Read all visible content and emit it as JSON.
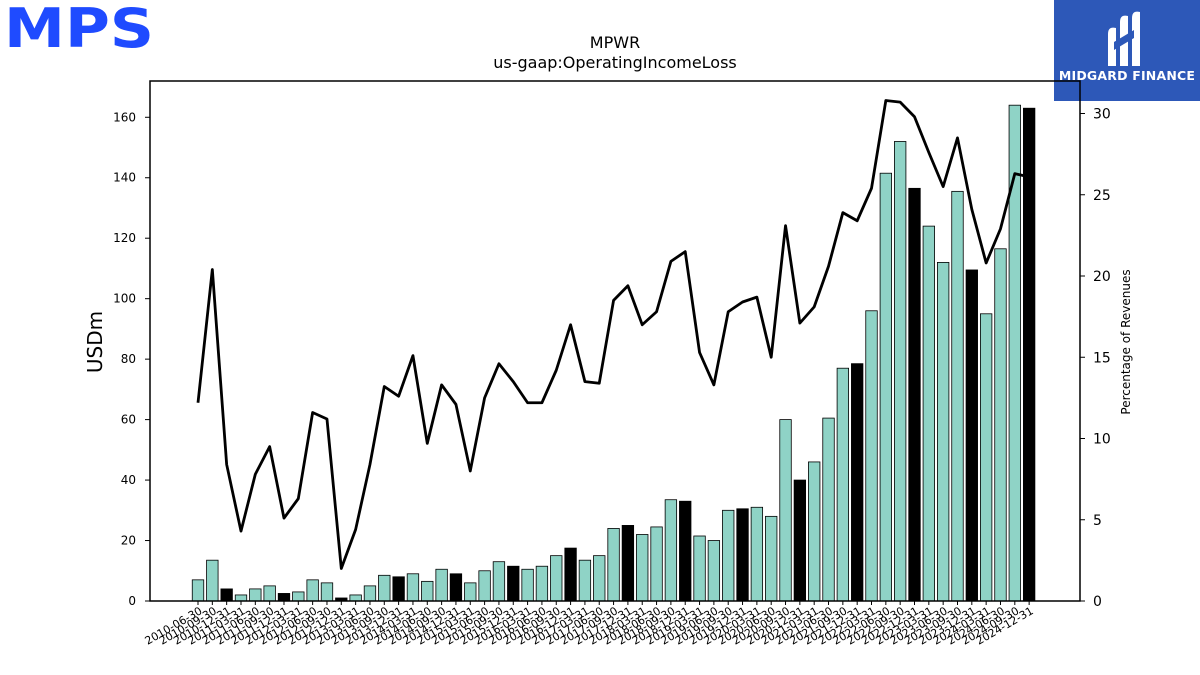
{
  "logo_left": {
    "text": "MPS",
    "color": "#1f4bff"
  },
  "logo_right": {
    "text": "MIDGARD FINANCE",
    "background": "#2d58b8",
    "icon": "midgard-m-logo"
  },
  "chart_data": {
    "type": "bar+line",
    "title": "MPWR",
    "subtitle": "us-gaap:OperatingIncomeLoss",
    "ylabel": "USDm",
    "y2label": "Percentage of Revenues",
    "ylim": [
      0,
      172
    ],
    "y2lim": [
      0,
      32
    ],
    "yticks": [
      0,
      20,
      40,
      60,
      80,
      100,
      120,
      140,
      160
    ],
    "y2ticks": [
      0,
      5,
      10,
      15,
      20,
      25,
      30
    ],
    "grid": false,
    "colors": {
      "bar_quarter": "#8fd3c6",
      "bar_year_end": "#000000",
      "line": "#000000"
    },
    "categories": [
      "2010-06-30",
      "2010-09-30",
      "2010-12-31",
      "2011-03-31",
      "2011-06-30",
      "2011-09-30",
      "2011-12-31",
      "2012-03-31",
      "2012-06-30",
      "2012-09-30",
      "2012-12-31",
      "2013-03-31",
      "2013-06-30",
      "2013-09-30",
      "2013-12-31",
      "2014-03-31",
      "2014-06-30",
      "2014-09-30",
      "2014-12-31",
      "2015-03-31",
      "2015-06-30",
      "2015-09-30",
      "2015-12-31",
      "2016-03-31",
      "2016-06-30",
      "2016-09-30",
      "2016-12-31",
      "2017-03-31",
      "2017-06-30",
      "2017-09-30",
      "2017-12-31",
      "2018-03-31",
      "2018-06-30",
      "2018-09-30",
      "2018-12-31",
      "2019-03-31",
      "2019-06-30",
      "2019-09-30",
      "2019-12-31",
      "2020-03-31",
      "2020-06-30",
      "2020-09-30",
      "2020-12-31",
      "2021-03-31",
      "2021-06-30",
      "2021-09-30",
      "2021-12-31",
      "2022-03-31",
      "2022-06-30",
      "2022-09-30",
      "2022-12-31",
      "2023-03-31",
      "2023-06-30",
      "2023-09-30",
      "2023-12-31",
      "2024-03-31",
      "2024-06-30",
      "2024-09-30",
      "2024-12-31"
    ],
    "bars": {
      "name": "Operating income (USDm)",
      "values": [
        7,
        13.5,
        4,
        2,
        4,
        5,
        2.5,
        3,
        7,
        6,
        1,
        2,
        5,
        8.5,
        8,
        9,
        6.5,
        10.5,
        9,
        6,
        10,
        13,
        11.5,
        10.5,
        11.5,
        15,
        17.5,
        13.5,
        15,
        24,
        25,
        22,
        24.5,
        33.5,
        33,
        21.5,
        20,
        30,
        30.5,
        31,
        28,
        60,
        40,
        46,
        60.5,
        77,
        78.5,
        96,
        141.5,
        152,
        136.5,
        124,
        112,
        135.5,
        109.5,
        95,
        116.5,
        164,
        163
      ],
      "year_end": [
        false,
        false,
        true,
        false,
        false,
        false,
        true,
        false,
        false,
        false,
        true,
        false,
        false,
        false,
        true,
        false,
        false,
        false,
        true,
        false,
        false,
        false,
        true,
        false,
        false,
        false,
        true,
        false,
        false,
        false,
        true,
        false,
        false,
        false,
        true,
        false,
        false,
        false,
        true,
        false,
        false,
        false,
        true,
        false,
        false,
        false,
        true,
        false,
        false,
        false,
        true,
        false,
        false,
        false,
        true,
        false,
        false,
        false,
        true
      ]
    },
    "line": {
      "name": "Percentage of Revenues",
      "values": [
        12.2,
        20.4,
        8.4,
        4.3,
        7.8,
        9.5,
        5.1,
        6.3,
        11.6,
        11.2,
        2.0,
        4.4,
        8.4,
        13.2,
        12.6,
        15.1,
        9.7,
        13.3,
        12.1,
        8.0,
        12.5,
        14.6,
        13.5,
        12.2,
        12.2,
        14.2,
        17.0,
        13.5,
        13.4,
        18.5,
        19.4,
        17.0,
        17.8,
        20.9,
        21.5,
        15.3,
        13.3,
        17.8,
        18.4,
        18.7,
        15.0,
        23.1,
        17.1,
        18.1,
        20.6,
        23.9,
        23.4,
        25.4,
        30.8,
        30.7,
        29.8,
        27.6,
        25.5,
        28.5,
        24.1,
        20.8,
        22.9,
        26.3,
        26.1
      ]
    }
  }
}
